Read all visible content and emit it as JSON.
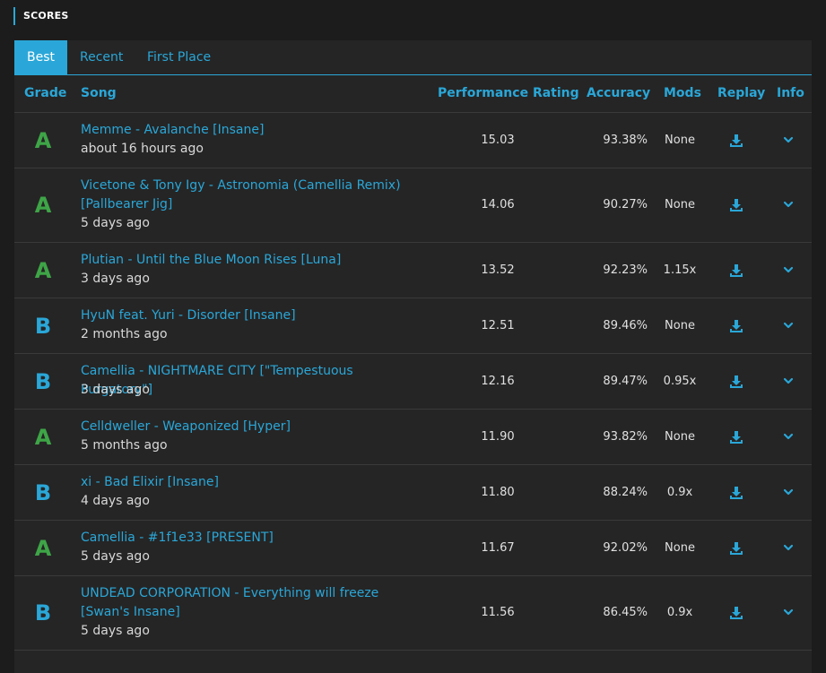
{
  "section": {
    "title": "SCORES"
  },
  "tabs": [
    {
      "label": "Best",
      "active": true
    },
    {
      "label": "Recent",
      "active": false
    },
    {
      "label": "First Place",
      "active": false
    }
  ],
  "columns": {
    "grade": "Grade",
    "song": "Song",
    "performance": "Performance Rating",
    "accuracy": "Accuracy",
    "mods": "Mods",
    "replay": "Replay",
    "info": "Info"
  },
  "colors": {
    "accent": "#2aa7d8",
    "grade_a": "#3ea547",
    "grade_b": "#2aa7d8",
    "background": "#1c1c1c",
    "panel": "#252525"
  },
  "icons": {
    "replay": "download-icon",
    "info": "chevron-down-icon"
  },
  "rows": [
    {
      "grade": "A",
      "title_lines": [
        "Memme - Avalanche [Insane]"
      ],
      "time": "about 16 hours ago",
      "performance": "15.03",
      "accuracy": "93.38%",
      "mods": "None"
    },
    {
      "grade": "A",
      "title_lines": [
        "Vicetone & Tony Igy - Astronomia (Camellia Remix)",
        "[Pallbearer Jig]"
      ],
      "time": "5 days ago",
      "performance": "14.06",
      "accuracy": "90.27%",
      "mods": "None"
    },
    {
      "grade": "A",
      "title_lines": [
        "Plutian - Until the Blue Moon Rises [Luna]"
      ],
      "time": "3 days ago",
      "performance": "13.52",
      "accuracy": "92.23%",
      "mods": "1.15x"
    },
    {
      "grade": "B",
      "title_lines": [
        "HyuN feat. Yuri - Disorder [Insane]"
      ],
      "time": "2 months ago",
      "performance": "12.51",
      "accuracy": "89.46%",
      "mods": "None"
    },
    {
      "grade": "B",
      "title_lines": [
        "Camellia - NIGHTMARE CITY [\"Tempestuous Purgatory\"]"
      ],
      "time": "3 days ago",
      "performance": "12.16",
      "accuracy": "89.47%",
      "mods": "0.95x"
    },
    {
      "grade": "A",
      "title_lines": [
        "Celldweller - Weaponized [Hyper]"
      ],
      "time": "5 months ago",
      "performance": "11.90",
      "accuracy": "93.82%",
      "mods": "None"
    },
    {
      "grade": "B",
      "title_lines": [
        "xi - Bad Elixir [Insane]"
      ],
      "time": "4 days ago",
      "performance": "11.80",
      "accuracy": "88.24%",
      "mods": "0.9x"
    },
    {
      "grade": "A",
      "title_lines": [
        "Camellia - #1f1e33 [PRESENT]"
      ],
      "time": "5 days ago",
      "performance": "11.67",
      "accuracy": "92.02%",
      "mods": "None"
    },
    {
      "grade": "B",
      "title_lines": [
        "UNDEAD CORPORATION - Everything will freeze",
        "[Swan's Insane]"
      ],
      "time": "5 days ago",
      "performance": "11.56",
      "accuracy": "86.45%",
      "mods": "0.9x"
    }
  ]
}
